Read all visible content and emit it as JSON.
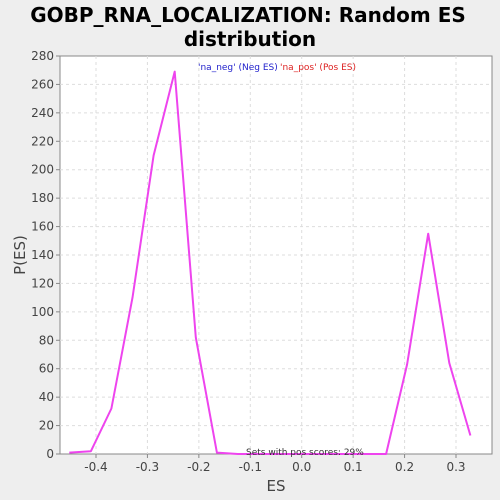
{
  "chart_data": {
    "type": "line",
    "title_lines": [
      "GOBP_RNA_LOCALIZATION: Random ES",
      "distribution"
    ],
    "xlabel": "ES",
    "ylabel": "P(ES)",
    "xlim": [
      -0.47,
      0.37
    ],
    "ylim": [
      0,
      280
    ],
    "xticks": [
      -0.4,
      -0.3,
      -0.2,
      -0.1,
      0.0,
      0.1,
      0.2,
      0.3
    ],
    "xtick_labels": [
      "-0.4",
      "-0.3",
      "-0.2",
      "-0.1",
      "0.0",
      "0.1",
      "0.2",
      "0.3"
    ],
    "yticks": [
      0,
      20,
      40,
      60,
      80,
      100,
      120,
      140,
      160,
      180,
      200,
      220,
      240,
      260,
      280
    ],
    "ytick_labels": [
      "0",
      "20",
      "40",
      "60",
      "80",
      "100",
      "120",
      "140",
      "160",
      "180",
      "200",
      "220",
      "240",
      "260",
      "280"
    ],
    "grid": true,
    "series": [
      {
        "color": "#ee44ee",
        "x": [
          -0.452,
          -0.41,
          -0.37,
          -0.329,
          -0.288,
          -0.247,
          -0.206,
          -0.165,
          -0.124,
          -0.083,
          -0.042,
          0.0,
          0.041,
          0.082,
          0.123,
          0.164,
          0.205,
          0.246,
          0.287,
          0.328
        ],
        "y": [
          1,
          2,
          32,
          110,
          210,
          269,
          82,
          1,
          0,
          0,
          0,
          0,
          0,
          0,
          0,
          0,
          63,
          155,
          64,
          13
        ]
      }
    ],
    "legend": {
      "placement": "top-center",
      "entries": [
        {
          "label": "'na_neg' (Neg ES)",
          "color": "#2222cc"
        },
        {
          "label": "'na_pos' (Pos ES)",
          "color": "#dd2222"
        }
      ]
    },
    "annotation": "Sets with pos scores: 29%"
  }
}
